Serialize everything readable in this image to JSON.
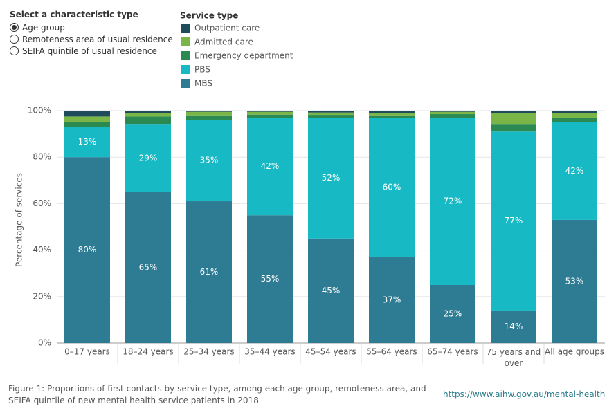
{
  "filter": {
    "title": "Select a characteristic type",
    "options": [
      "Age group",
      "Remoteness area of usual residence",
      "SEIFA quintile of usual residence"
    ],
    "selected": 0
  },
  "chart_data": {
    "type": "stacked_bar",
    "legend_title": "Service type",
    "y_label": "Percentage of services",
    "categories": [
      "0–17 years",
      "18–24 years",
      "25–34 years",
      "35–44 years",
      "45–54 years",
      "55–64 years",
      "65–74 years",
      "75 years and over",
      "All age groups"
    ],
    "series": [
      {
        "name": "MBS",
        "color": "#2e7b94",
        "values": [
          80,
          65,
          61,
          55,
          45,
          37,
          25,
          14,
          53
        ],
        "value_labels": [
          "80%",
          "65%",
          "61%",
          "55%",
          "45%",
          "37%",
          "25%",
          "14%",
          "53%"
        ]
      },
      {
        "name": "PBS",
        "color": "#17b9c5",
        "values": [
          13,
          29,
          35,
          42,
          52,
          60,
          72,
          77,
          42
        ],
        "value_labels": [
          "13%",
          "29%",
          "35%",
          "42%",
          "52%",
          "60%",
          "72%",
          "77%",
          "42%"
        ]
      },
      {
        "name": "Emergency department",
        "color": "#2a8a52",
        "values": [
          2,
          3.5,
          2,
          1.3,
          1.2,
          1,
          1.5,
          3,
          2
        ]
      },
      {
        "name": "Admitted care",
        "color": "#7ab547",
        "values": [
          2.5,
          1.5,
          1.5,
          1.2,
          1,
          1,
          1,
          5,
          2
        ]
      },
      {
        "name": "Outpatient care",
        "color": "#1f4c5c",
        "values": [
          2.5,
          1,
          0.5,
          0.5,
          0.8,
          1,
          0.5,
          1,
          1
        ]
      }
    ],
    "ylim": [
      0,
      100
    ],
    "yticks": [
      {
        "value": 0,
        "label": "0%"
      },
      {
        "value": 20,
        "label": "20%"
      },
      {
        "value": 40,
        "label": "40%"
      },
      {
        "value": 60,
        "label": "60%"
      },
      {
        "value": 80,
        "label": "80%"
      },
      {
        "value": 100,
        "label": "100%"
      }
    ],
    "grid": true
  },
  "caption": "Figure 1: Proportions of first contacts by service type, among each age group, remoteness area, and SEIFA quintile of new mental health service patients in 2018",
  "link": "https://www.aihw.gov.au/mental-health"
}
